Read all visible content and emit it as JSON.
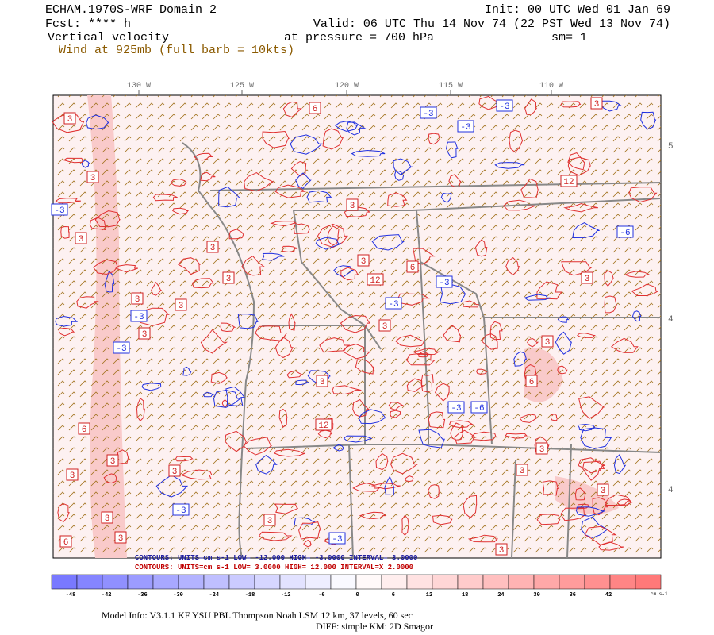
{
  "header": {
    "title": "ECHAM.1970S-WRF Domain 2",
    "forecast": "Fcst: **** h",
    "field": "Vertical velocity",
    "wind": "Wind at 925mb (full barb = 10kts)",
    "init": "Init: 00 UTC Wed 01 Jan 69",
    "valid": "Valid: 06 UTC Thu 14 Nov 74 (22 PST Wed 13 Nov 74)",
    "pressure": "at pressure =  700 hPa",
    "smoothing": "sm= 1"
  },
  "map": {
    "longitude_labels": [
      "130 W",
      "125 W",
      "120 W",
      "115 W",
      "110 W"
    ],
    "latitude_labels": [
      "5",
      "4",
      "4"
    ],
    "contour_labels": [
      "3",
      "3",
      "-3",
      "3",
      "3",
      "3",
      "3",
      "3",
      "-3",
      "3",
      "-3",
      "6",
      "3",
      "3",
      "3",
      "-3",
      "3",
      "3",
      "6",
      "3",
      "-3",
      "3",
      "12",
      "3",
      "-3",
      "3",
      "12",
      "6",
      "-3",
      "-3",
      "-6",
      "3",
      "-3",
      "3",
      "12",
      "-6",
      "3",
      "3",
      "6",
      "-3",
      "6",
      "3",
      "-3",
      "3",
      "3",
      "3"
    ]
  },
  "contour_info": {
    "negative": "CONTOURS:  UNITS=cm s-1  LOW=  -12.000   HIGH=  -3.0000   INTERVAL= 3.0000",
    "positive": "CONTOURS:  UNITS=cm s-1  LOW=  3.0000    HIGH=  12.000    INTERVAL=X  2.0000"
  },
  "colorbar": {
    "labels": [
      "-48",
      "-42",
      "-36",
      "-30",
      "-24",
      "-18",
      "-12",
      "-6",
      "0",
      "6",
      "12",
      "18",
      "24",
      "30",
      "36",
      "42"
    ],
    "unit": "cm s-1"
  },
  "footer": {
    "model_info": "Model Info: V3.1.1    KF      YSU PBL   Thompson     Noah LSM   12 km,    37 levels,    60 sec",
    "diffusion": "DIFF: simple KM: 2D Smagor"
  }
}
